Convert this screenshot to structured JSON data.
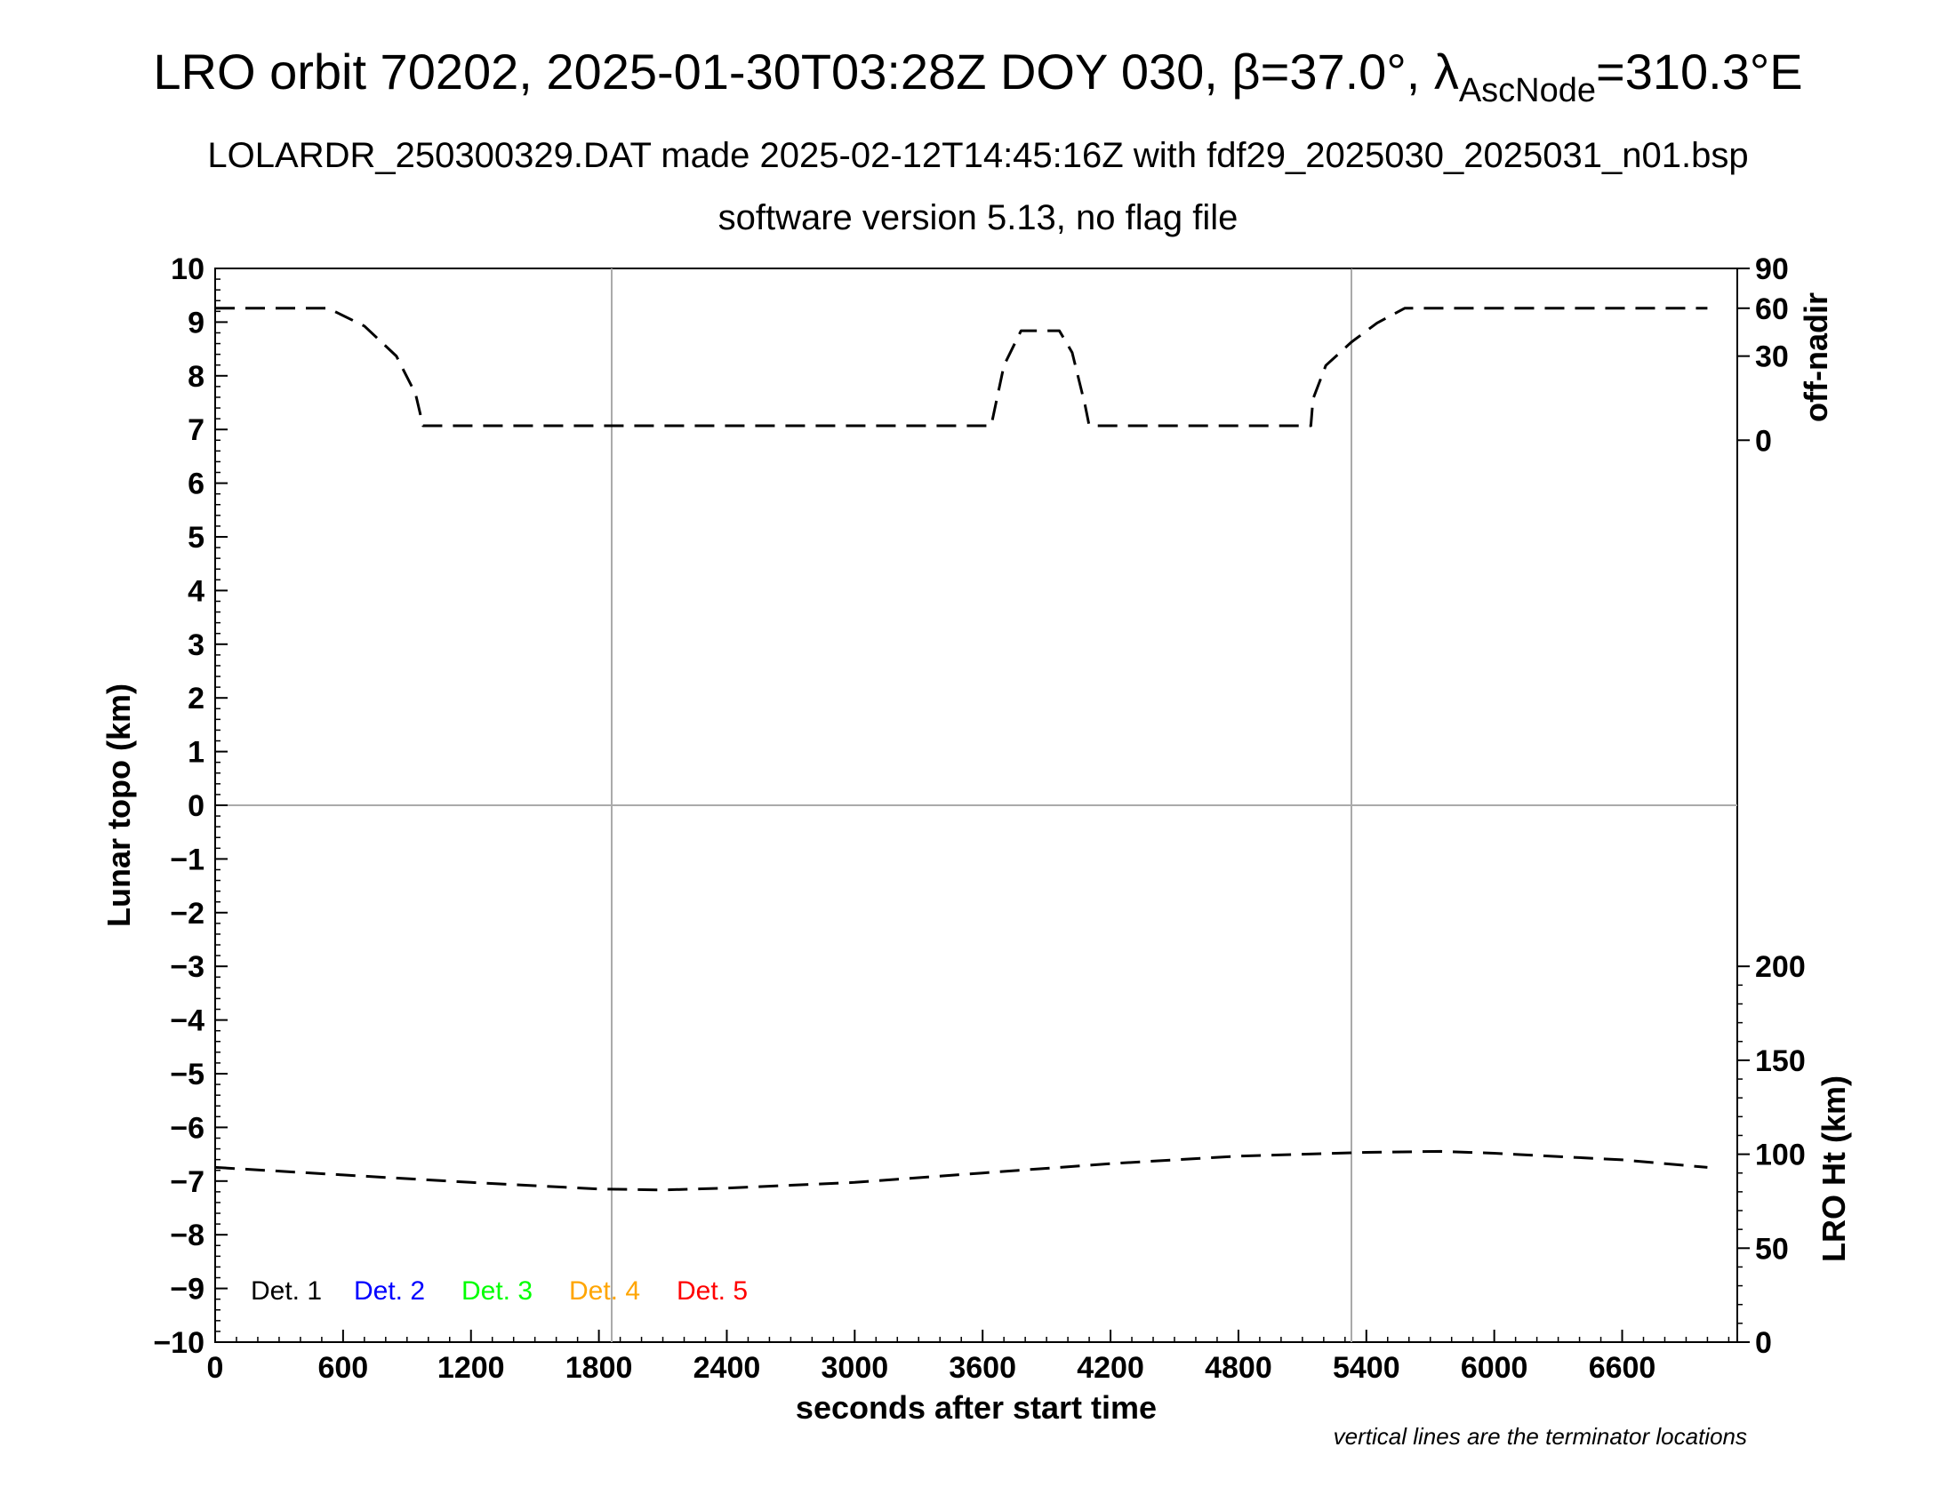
{
  "chart_data": {
    "type": "line",
    "title": {
      "prefix": "LRO orbit 70202, 2025-01-30T03:28Z DOY 030, β=37.0°, λ",
      "subscript": "AscNode",
      "suffix": "=310.3°E"
    },
    "subtitle": "LOLARDR_250300329.DAT made 2025-02-12T14:45:16Z with fdf29_2025030_2025031_n01.bsp",
    "subtitle2": "software version 5.13, no flag file",
    "xlabel": "seconds after start time",
    "ylabel": "Lunar topo (km)",
    "y2_upper_label": "off-nadir",
    "y2_lower_label": "LRO Ht (km)",
    "footnote": "vertical lines are the terminator locations",
    "xlim": [
      0,
      7140
    ],
    "ylim": [
      -10,
      10
    ],
    "x_ticks": [
      "0",
      "600",
      "1200",
      "1800",
      "2400",
      "3000",
      "3600",
      "4200",
      "4800",
      "5400",
      "6000",
      "6600"
    ],
    "x_tick_values": [
      0,
      600,
      1200,
      1800,
      2400,
      3000,
      3600,
      4200,
      4800,
      5400,
      6000,
      6600
    ],
    "y_ticks": [
      "10",
      "9",
      "8",
      "7",
      "6",
      "5",
      "4",
      "3",
      "2",
      "1",
      "0",
      "−1",
      "−2",
      "−3",
      "−4",
      "−5",
      "−6",
      "−7",
      "−8",
      "−9",
      "−10"
    ],
    "y_tick_values": [
      10,
      9,
      8,
      7,
      6,
      5,
      4,
      3,
      2,
      1,
      0,
      -1,
      -2,
      -3,
      -4,
      -5,
      -6,
      -7,
      -8,
      -9,
      -10
    ],
    "offnadir_ticks": [
      "90",
      "60",
      "30",
      "0"
    ],
    "offnadir_tick_values": [
      90,
      60,
      30,
      0
    ],
    "offnadir_range": [
      0,
      90
    ],
    "height_ticks": [
      "200",
      "150",
      "100",
      "50",
      "0"
    ],
    "height_tick_values": [
      200,
      150,
      100,
      50,
      0
    ],
    "height_range": [
      0,
      200
    ],
    "terminators": [
      1860,
      5330
    ],
    "grid": "vertical lines at terminators, horizontal line at 0",
    "legend": {
      "placement": "bottom-left",
      "entries": [
        {
          "label": "Det. 1",
          "color": "#000000"
        },
        {
          "label": "Det. 2",
          "color": "#0000ff"
        },
        {
          "label": "Det. 3",
          "color": "#00ff00"
        },
        {
          "label": "Det. 4",
          "color": "#ffa500"
        },
        {
          "label": "Det. 5",
          "color": "#ff0000"
        }
      ]
    },
    "series": [
      {
        "axis": "off-nadir",
        "style": "dashed",
        "x": [
          0,
          530,
          700,
          850,
          940,
          975,
          3640,
          3700,
          3780,
          3830,
          3870,
          3960,
          4020,
          4080,
          4100,
          5140,
          5150,
          5210,
          5330,
          5450,
          5580,
          7000
        ],
        "values": [
          60,
          60,
          48,
          30,
          12,
          2,
          2,
          25,
          45,
          45,
          45,
          45,
          32,
          8,
          2,
          2,
          10,
          25,
          38,
          50,
          60,
          60
        ]
      },
      {
        "axis": "height",
        "style": "dashed",
        "x": [
          0,
          600,
          1200,
          1800,
          2100,
          2400,
          3000,
          3600,
          4200,
          4800,
          5400,
          5750,
          6000,
          6600,
          7000
        ],
        "values": [
          93,
          89,
          85,
          81.5,
          81,
          82,
          85,
          90,
          95,
          99,
          101,
          101.5,
          100.5,
          97,
          93
        ]
      }
    ]
  }
}
